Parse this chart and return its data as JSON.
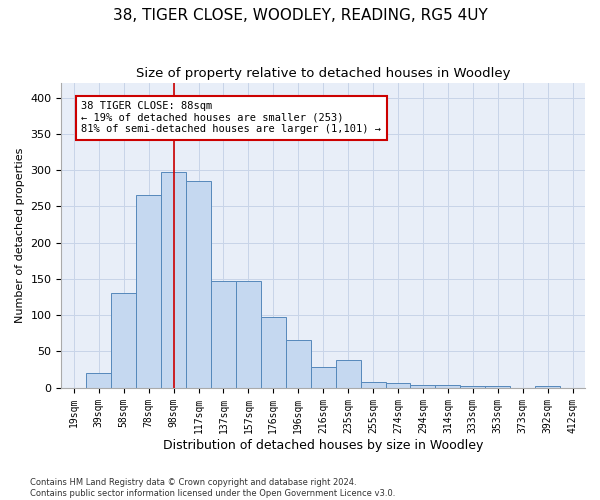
{
  "title": "38, TIGER CLOSE, WOODLEY, READING, RG5 4UY",
  "subtitle": "Size of property relative to detached houses in Woodley",
  "xlabel": "Distribution of detached houses by size in Woodley",
  "ylabel": "Number of detached properties",
  "bin_labels": [
    "19sqm",
    "39sqm",
    "58sqm",
    "78sqm",
    "98sqm",
    "117sqm",
    "137sqm",
    "157sqm",
    "176sqm",
    "196sqm",
    "216sqm",
    "235sqm",
    "255sqm",
    "274sqm",
    "294sqm",
    "314sqm",
    "333sqm",
    "353sqm",
    "373sqm",
    "392sqm",
    "412sqm"
  ],
  "bar_values": [
    0,
    20,
    130,
    265,
    298,
    285,
    147,
    147,
    97,
    65,
    28,
    38,
    8,
    6,
    3,
    4,
    2,
    2,
    0,
    2,
    0
  ],
  "bar_color": "#c5d8f0",
  "bar_edge_color": "#5588bb",
  "vline_color": "#cc0000",
  "vline_bin_index": 4,
  "annotation_text": "38 TIGER CLOSE: 88sqm\n← 19% of detached houses are smaller (253)\n81% of semi-detached houses are larger (1,101) →",
  "annotation_box_color": "#ffffff",
  "annotation_box_edge": "#cc0000",
  "ylim": [
    0,
    420
  ],
  "yticks": [
    0,
    50,
    100,
    150,
    200,
    250,
    300,
    350,
    400
  ],
  "footer": "Contains HM Land Registry data © Crown copyright and database right 2024.\nContains public sector information licensed under the Open Government Licence v3.0.",
  "title_fontsize": 11,
  "subtitle_fontsize": 9.5,
  "xlabel_fontsize": 9,
  "ylabel_fontsize": 8,
  "grid_color": "#c8d4e8",
  "background_color": "#e8eef8"
}
